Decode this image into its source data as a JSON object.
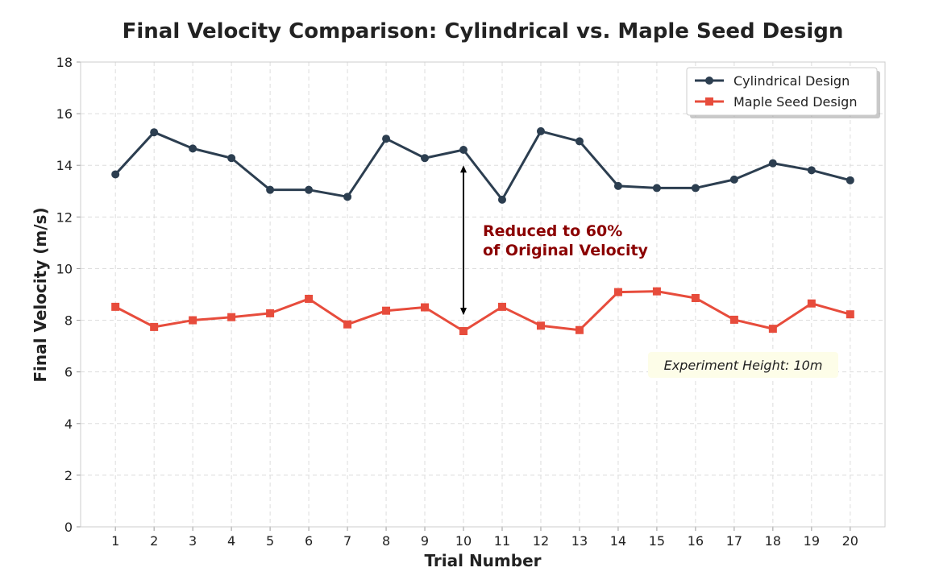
{
  "chart_data": {
    "type": "line",
    "title": "Final Velocity Comparison: Cylindrical vs. Maple Seed Design",
    "xlabel": "Trial Number",
    "ylabel": "Final Velocity (m/s)",
    "x": [
      1,
      2,
      3,
      4,
      5,
      6,
      7,
      8,
      9,
      10,
      11,
      12,
      13,
      14,
      15,
      16,
      17,
      18,
      19,
      20
    ],
    "xlim": [
      0.1,
      20.9
    ],
    "ylim": [
      0,
      18
    ],
    "yticks": [
      0,
      2,
      4,
      6,
      8,
      10,
      12,
      14,
      16,
      18
    ],
    "grid": true,
    "legend_position": "top-right",
    "series": [
      {
        "name": "Cylindrical Design",
        "color": "#2c3e50",
        "marker": "circle",
        "values": [
          13.65,
          15.28,
          14.65,
          14.28,
          13.05,
          13.05,
          12.78,
          15.03,
          14.28,
          14.6,
          12.67,
          15.32,
          14.93,
          13.2,
          13.12,
          13.12,
          13.45,
          14.08,
          13.81,
          13.42
        ]
      },
      {
        "name": "Maple Seed Design",
        "color": "#e74c3c",
        "marker": "square",
        "values": [
          8.52,
          7.74,
          8.0,
          8.12,
          8.27,
          8.83,
          7.84,
          8.37,
          8.5,
          7.58,
          8.52,
          7.79,
          7.62,
          9.09,
          9.12,
          8.86,
          8.02,
          7.67,
          8.65,
          8.23
        ]
      }
    ],
    "annotation": {
      "arrow_x": 10,
      "arrow_from": 14.0,
      "arrow_to": 8.2,
      "line1": "Reduced to 60%",
      "line2": "of Original Velocity",
      "color": "#8b0000"
    },
    "note": "Experiment Height: 10m",
    "note_bg": "#fdfde8"
  }
}
